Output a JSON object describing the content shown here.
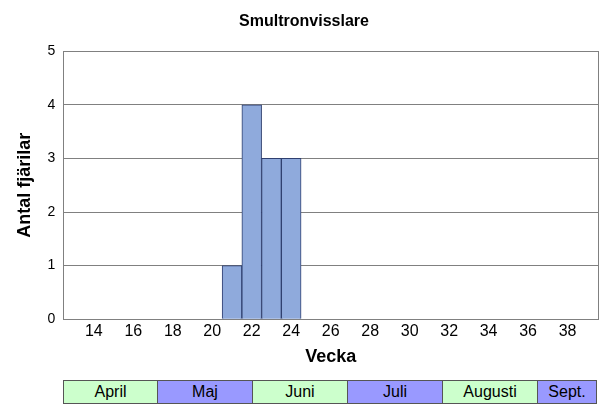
{
  "chart_data": {
    "type": "bar",
    "title": "Smultronvisslare",
    "x_label": "Vecka",
    "y_label": "Antal fjärilar",
    "x": [
      21,
      22,
      23,
      24
    ],
    "values": [
      1,
      4,
      3,
      3
    ],
    "color": "#8faadc",
    "xlim": [
      13.5,
      38.5
    ],
    "xticks": [
      14,
      16,
      18,
      20,
      22,
      24,
      26,
      28,
      30,
      32,
      34,
      36,
      38
    ],
    "ylim": [
      0,
      5
    ],
    "yticks": [
      0,
      1,
      2,
      3,
      4,
      5
    ],
    "grid": true,
    "months": [
      "April",
      "Maj",
      "Juni",
      "Juli",
      "Augusti",
      "Sept."
    ]
  }
}
